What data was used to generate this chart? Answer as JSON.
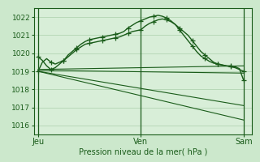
{
  "title": "Pression niveau de la mer( hPa )",
  "bg_color": "#cce8cc",
  "plot_bg_color": "#d8eed8",
  "grid_color": "#b8d8b8",
  "line_color": "#1a5c1a",
  "ylim": [
    1015.5,
    1022.5
  ],
  "yticks": [
    1016,
    1017,
    1018,
    1019,
    1020,
    1021,
    1022
  ],
  "xtick_labels": [
    "Jeu",
    "Ven",
    "Sam"
  ],
  "xtick_positions": [
    0,
    120,
    240
  ],
  "xlim": [
    -5,
    250
  ],
  "vline_positions": [
    0,
    120,
    240
  ],
  "series_curved1": {
    "x": [
      0,
      5,
      10,
      15,
      20,
      25,
      30,
      35,
      40,
      45,
      50,
      55,
      60,
      65,
      70,
      75,
      80,
      85,
      90,
      95,
      100,
      105,
      110,
      115,
      120,
      125,
      130,
      135,
      140,
      145,
      150,
      155,
      160,
      165,
      170,
      175,
      180,
      185,
      190,
      195,
      200,
      205,
      210,
      215,
      220,
      225,
      230,
      235,
      240
    ],
    "y": [
      1019.0,
      1019.5,
      1019.7,
      1019.5,
      1019.4,
      1019.5,
      1019.6,
      1019.8,
      1020.0,
      1020.2,
      1020.35,
      1020.5,
      1020.55,
      1020.6,
      1020.65,
      1020.7,
      1020.75,
      1020.8,
      1020.85,
      1020.9,
      1021.0,
      1021.1,
      1021.2,
      1021.25,
      1021.3,
      1021.5,
      1021.65,
      1021.75,
      1021.85,
      1021.9,
      1021.85,
      1021.75,
      1021.6,
      1021.4,
      1021.2,
      1021.0,
      1020.7,
      1020.4,
      1020.1,
      1019.9,
      1019.7,
      1019.5,
      1019.4,
      1019.35,
      1019.3,
      1019.25,
      1019.2,
      1019.1,
      1019.0
    ],
    "marker": "+",
    "markersize": 4,
    "linewidth": 1.0,
    "markevery": 3
  },
  "series_curved2": {
    "x": [
      0,
      5,
      10,
      15,
      20,
      25,
      30,
      35,
      40,
      45,
      50,
      55,
      60,
      65,
      70,
      75,
      80,
      85,
      90,
      95,
      100,
      105,
      110,
      115,
      120,
      125,
      130,
      135,
      140,
      145,
      150,
      155,
      160,
      165,
      170,
      175,
      180,
      185,
      190,
      195,
      200,
      205,
      210,
      215,
      220,
      225,
      230,
      235,
      240
    ],
    "y": [
      1019.8,
      1019.6,
      1019.3,
      1019.1,
      1019.2,
      1019.4,
      1019.6,
      1019.9,
      1020.1,
      1020.3,
      1020.5,
      1020.65,
      1020.75,
      1020.8,
      1020.85,
      1020.9,
      1020.95,
      1021.0,
      1021.05,
      1021.1,
      1021.2,
      1021.4,
      1021.55,
      1021.7,
      1021.8,
      1021.9,
      1022.0,
      1022.05,
      1022.1,
      1022.05,
      1021.95,
      1021.8,
      1021.6,
      1021.3,
      1021.0,
      1020.7,
      1020.4,
      1020.1,
      1019.85,
      1019.7,
      1019.55,
      1019.45,
      1019.4,
      1019.35,
      1019.3,
      1019.3,
      1019.25,
      1019.15,
      1018.5
    ],
    "marker": "+",
    "markersize": 4,
    "linewidth": 1.0,
    "markevery": 3
  },
  "series_flat": {
    "x": [
      0,
      240
    ],
    "y": [
      1019.1,
      1019.3
    ],
    "linewidth": 0.8
  },
  "series_diag1": {
    "x": [
      0,
      240
    ],
    "y": [
      1019.05,
      1018.9
    ],
    "linewidth": 0.8
  },
  "series_diag2": {
    "x": [
      0,
      240
    ],
    "y": [
      1019.0,
      1017.1
    ],
    "linewidth": 0.8
  },
  "series_diag3": {
    "x": [
      0,
      240
    ],
    "y": [
      1019.0,
      1016.3
    ],
    "linewidth": 0.8
  }
}
